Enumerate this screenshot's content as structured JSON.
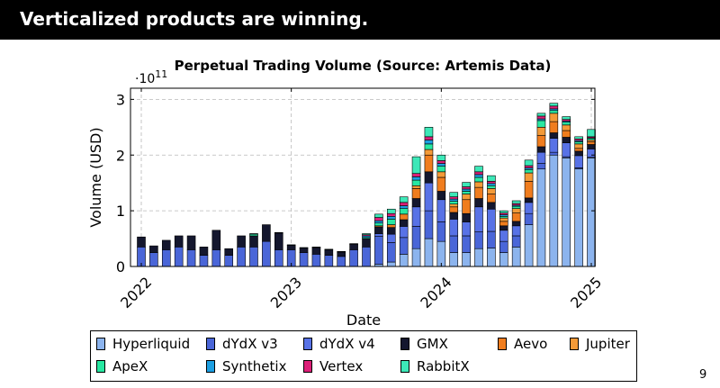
{
  "slide": {
    "title": "Verticalized products are winning.",
    "page_number": "9"
  },
  "chart_data": {
    "type": "bar",
    "stacked": true,
    "title": "Perpetual Trading Volume (Source: Artemis Data)",
    "xlabel": "Date",
    "ylabel": "Volume (USD)",
    "y_multiplier": "·10",
    "y_exponent": "11",
    "ylim": [
      0,
      3.2
    ],
    "yticks": [
      "0",
      "1",
      "2",
      "3"
    ],
    "yticks_values": [
      0,
      1,
      2,
      3
    ],
    "xticks": [
      "2022",
      "2023",
      "2024",
      "2025"
    ],
    "grid": true,
    "legend_position": "bottom",
    "categories": [
      "2022-01",
      "2022-02",
      "2022-03",
      "2022-04",
      "2022-05",
      "2022-06",
      "2022-07",
      "2022-08",
      "2022-09",
      "2022-10",
      "2022-11",
      "2022-12",
      "2023-01",
      "2023-02",
      "2023-03",
      "2023-04",
      "2023-05",
      "2023-06",
      "2023-07",
      "2023-08",
      "2023-09",
      "2023-10",
      "2023-11",
      "2023-12",
      "2024-01",
      "2024-02",
      "2024-03",
      "2024-04",
      "2024-05",
      "2024-06",
      "2024-07",
      "2024-08",
      "2024-09",
      "2024-10",
      "2024-11",
      "2024-12",
      "2025-01"
    ],
    "series": [
      {
        "name": "Hyperliquid",
        "color": "#8cb4ee",
        "values": [
          0,
          0,
          0,
          0,
          0,
          0,
          0,
          0,
          0,
          0,
          0,
          0,
          0,
          0,
          0,
          0,
          0,
          0,
          0,
          0.04,
          0.08,
          0.22,
          0.32,
          0.5,
          0.45,
          0.25,
          0.25,
          0.32,
          0.33,
          0.25,
          0.35,
          0.75,
          1.75,
          2.0,
          1.95,
          1.75,
          1.95
        ]
      },
      {
        "name": "dYdX v3",
        "color": "#4a66d8",
        "values": [
          0.35,
          0.25,
          0.3,
          0.35,
          0.3,
          0.2,
          0.3,
          0.2,
          0.35,
          0.35,
          0.45,
          0.3,
          0.3,
          0.25,
          0.22,
          0.2,
          0.18,
          0.3,
          0.35,
          0.5,
          0.35,
          0.3,
          0.4,
          0.5,
          0.35,
          0.3,
          0.3,
          0.3,
          0.3,
          0.2,
          0.2,
          0.2,
          0.1,
          0.05,
          0.02,
          0.02,
          0.01
        ]
      },
      {
        "name": "dYdX v4",
        "color": "#5872e6",
        "values": [
          0,
          0,
          0,
          0,
          0,
          0,
          0,
          0,
          0,
          0,
          0,
          0,
          0,
          0,
          0,
          0,
          0,
          0,
          0,
          0.05,
          0.15,
          0.2,
          0.35,
          0.5,
          0.4,
          0.3,
          0.25,
          0.45,
          0.4,
          0.2,
          0.18,
          0.2,
          0.2,
          0.25,
          0.25,
          0.22,
          0.15
        ]
      },
      {
        "name": "GMX",
        "color": "#14172e",
        "values": [
          0.18,
          0.12,
          0.17,
          0.2,
          0.25,
          0.15,
          0.35,
          0.12,
          0.2,
          0.2,
          0.3,
          0.3,
          0.08,
          0.08,
          0.12,
          0.1,
          0.08,
          0.1,
          0.15,
          0.12,
          0.12,
          0.12,
          0.15,
          0.2,
          0.15,
          0.12,
          0.15,
          0.15,
          0.12,
          0.08,
          0.08,
          0.08,
          0.1,
          0.1,
          0.1,
          0.08,
          0.08
        ]
      },
      {
        "name": "Aevo",
        "color": "#f07d1e",
        "values": [
          0,
          0,
          0,
          0,
          0,
          0,
          0,
          0,
          0,
          0,
          0,
          0,
          0,
          0,
          0,
          0,
          0,
          0,
          0,
          0.02,
          0.05,
          0.1,
          0.18,
          0.3,
          0.25,
          0.1,
          0.25,
          0.2,
          0.15,
          0.08,
          0.15,
          0.3,
          0.2,
          0.2,
          0.12,
          0.05,
          0.05
        ]
      },
      {
        "name": "Jupiter",
        "color": "#f39a38",
        "values": [
          0,
          0,
          0,
          0,
          0,
          0,
          0,
          0,
          0,
          0,
          0,
          0,
          0,
          0,
          0,
          0,
          0,
          0,
          0,
          0,
          0,
          0,
          0.05,
          0.1,
          0.1,
          0.05,
          0.1,
          0.1,
          0.1,
          0.06,
          0.08,
          0.15,
          0.15,
          0.15,
          0.1,
          0.08,
          0.03
        ]
      },
      {
        "name": "ApeX",
        "color": "#28e8a2",
        "values": [
          0,
          0,
          0,
          0,
          0,
          0,
          0,
          0,
          0,
          0.03,
          0,
          0,
          0,
          0,
          0,
          0,
          0,
          0,
          0.02,
          0.05,
          0.1,
          0.1,
          0.1,
          0.1,
          0.1,
          0.05,
          0.05,
          0.08,
          0.05,
          0.03,
          0.04,
          0.06,
          0.12,
          0.05,
          0.05,
          0.04,
          0.03
        ]
      },
      {
        "name": "Synthetix",
        "color": "#1c9fe2",
        "values": [
          0,
          0,
          0,
          0,
          0,
          0,
          0,
          0,
          0,
          0.01,
          0,
          0.01,
          0.01,
          0.01,
          0.01,
          0.01,
          0.01,
          0.01,
          0.03,
          0.04,
          0.05,
          0.05,
          0.06,
          0.07,
          0.05,
          0.04,
          0.04,
          0.05,
          0.04,
          0.03,
          0.02,
          0.03,
          0.03,
          0.03,
          0.02,
          0.02,
          0.01
        ]
      },
      {
        "name": "Vertex",
        "color": "#dc1f78",
        "values": [
          0,
          0,
          0,
          0,
          0,
          0,
          0,
          0,
          0,
          0,
          0,
          0,
          0,
          0,
          0,
          0,
          0,
          0,
          0.02,
          0.06,
          0.05,
          0.06,
          0.06,
          0.06,
          0.05,
          0.04,
          0.04,
          0.05,
          0.04,
          0.03,
          0.03,
          0.04,
          0.05,
          0.05,
          0.03,
          0.03,
          0.02
        ]
      },
      {
        "name": "RabbitX",
        "color": "#3de8b8",
        "values": [
          0,
          0,
          0,
          0,
          0,
          0,
          0,
          0,
          0,
          0,
          0,
          0,
          0,
          0,
          0,
          0,
          0,
          0,
          0.02,
          0.06,
          0.08,
          0.1,
          0.3,
          0.17,
          0.1,
          0.08,
          0.08,
          0.1,
          0.1,
          0.04,
          0.05,
          0.1,
          0.05,
          0.05,
          0.05,
          0.04,
          0.13
        ]
      }
    ]
  }
}
